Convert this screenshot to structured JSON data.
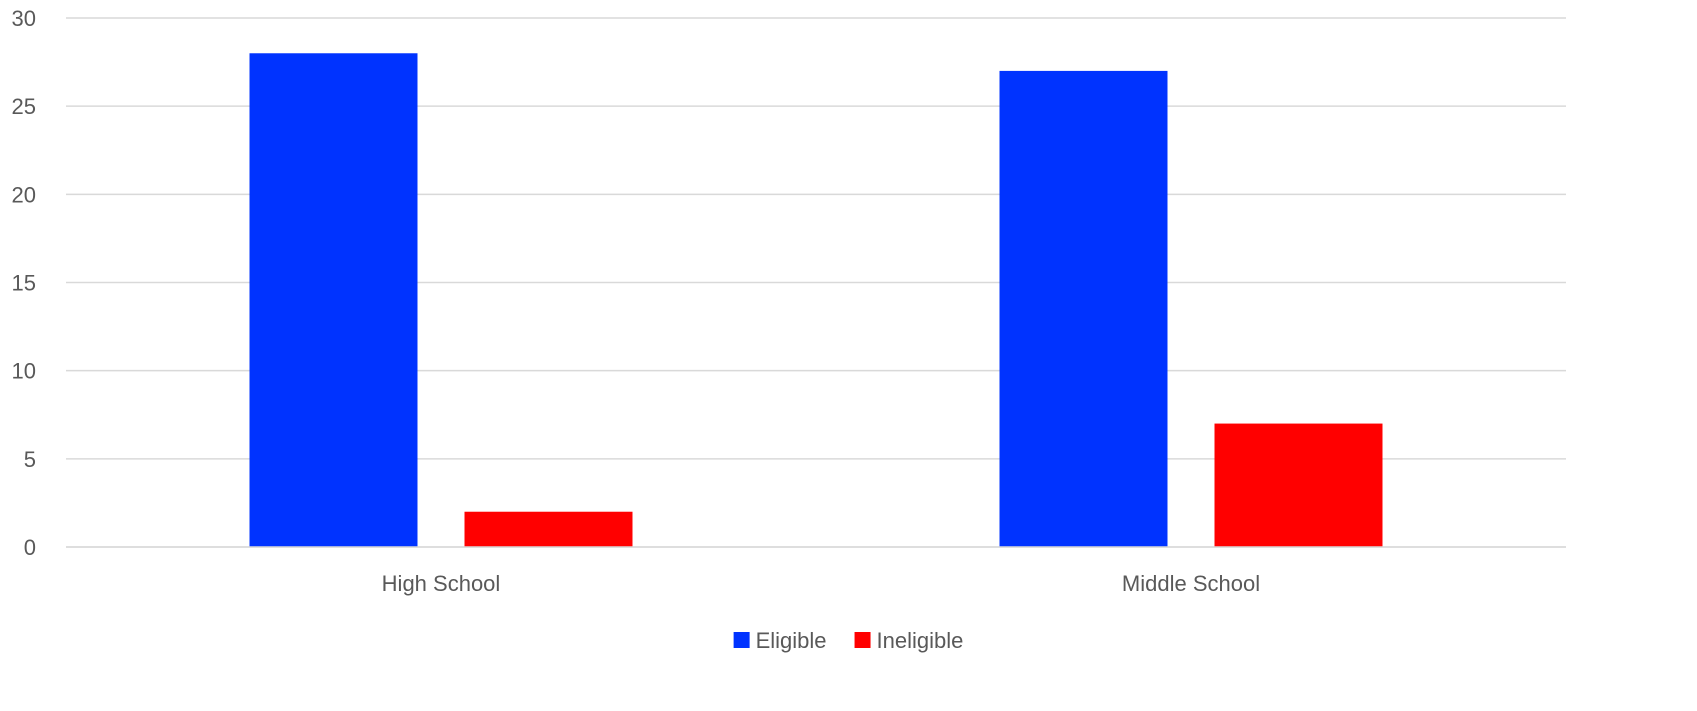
{
  "chart_data": {
    "type": "bar",
    "title": "",
    "xlabel": "",
    "ylabel": "",
    "categories": [
      "High School",
      "Middle School"
    ],
    "series": [
      {
        "name": "Eligible",
        "values": [
          28,
          27
        ],
        "color": "#0033ff"
      },
      {
        "name": "Ineligible",
        "values": [
          2,
          7
        ],
        "color": "#ff0000"
      }
    ],
    "ylim": [
      0,
      30
    ],
    "yticks": [
      0,
      5,
      10,
      15,
      20,
      25,
      30
    ],
    "grid": true,
    "legend_position": "bottom"
  }
}
